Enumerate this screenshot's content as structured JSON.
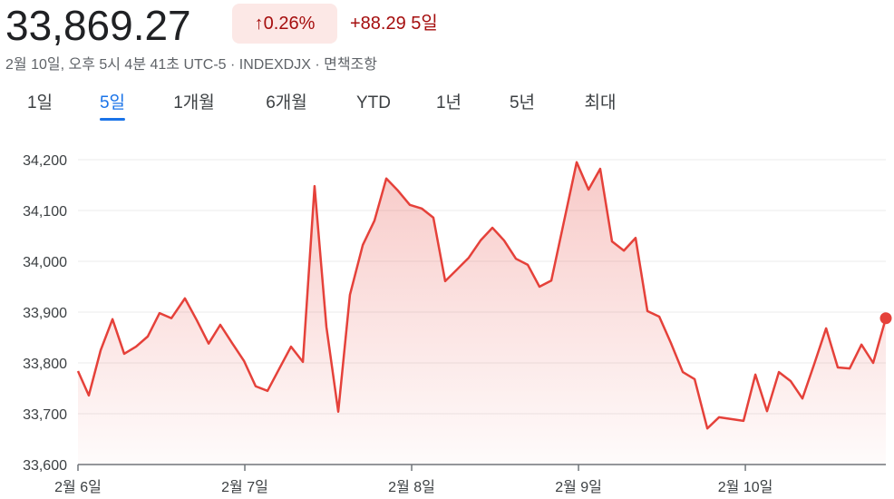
{
  "header": {
    "price": "33,869.27",
    "change_pct": "0.26%",
    "change_abs": "+88.29",
    "change_period": "5일",
    "subtitle": "2월 10일, 오후 5시 4분 41초 UTC-5 · INDEXDJX · 면책조항"
  },
  "tabs": {
    "items": [
      "1일",
      "5일",
      "1개월",
      "6개월",
      "YTD",
      "1년",
      "5년",
      "최대"
    ],
    "selected": 1
  },
  "chart_data": {
    "type": "line",
    "color": "#e5413a",
    "grid": true,
    "x": [
      0,
      0.065,
      0.136,
      0.207,
      0.277,
      0.348,
      0.418,
      0.489,
      0.56,
      0.641,
      0.712,
      0.783,
      0.853,
      0.924,
      0.995,
      1.065,
      1.136,
      1.207,
      1.277,
      1.348,
      1.418,
      1.489,
      1.56,
      1.63,
      1.707,
      1.777,
      1.848,
      1.918,
      1.989,
      2.06,
      2.13,
      2.201,
      2.272,
      2.342,
      2.413,
      2.484,
      2.554,
      2.625,
      2.696,
      2.766,
      2.837,
      2.989,
      3.06,
      3.13,
      3.201,
      3.272,
      3.342,
      3.413,
      3.484,
      3.554,
      3.625,
      3.696,
      3.772,
      3.842,
      3.989,
      4.06,
      4.13,
      4.201,
      4.272,
      4.342,
      4.413,
      4.484,
      4.554,
      4.625,
      4.696,
      4.766,
      4.842
    ],
    "values": [
      33784,
      33736,
      33825,
      33886,
      33818,
      33832,
      33852,
      33898,
      33888,
      33927,
      33884,
      33838,
      33875,
      33839,
      33804,
      33754,
      33745,
      33789,
      33832,
      33802,
      34148,
      33871,
      33704,
      33934,
      34032,
      34080,
      34163,
      34139,
      34111,
      34104,
      34086,
      33961,
      33984,
      34007,
      34041,
      34066,
      34041,
      34005,
      33993,
      33950,
      33962,
      34195,
      34141,
      34182,
      34039,
      34021,
      34046,
      33902,
      33891,
      33839,
      33782,
      33768,
      33671,
      33693,
      33686,
      33777,
      33705,
      33782,
      33764,
      33730,
      33798,
      33868,
      33791,
      33789,
      33836,
      33800,
      33888
    ],
    "xlim": [
      0,
      4.842
    ],
    "xticks": [
      {
        "value": 0,
        "label": "2월 6일"
      },
      {
        "value": 1,
        "label": "2월 7일"
      },
      {
        "value": 2,
        "label": "2월 8일"
      },
      {
        "value": 3,
        "label": "2월 9일"
      },
      {
        "value": 4,
        "label": "2월 10일"
      }
    ],
    "ylim": [
      33600,
      34220
    ],
    "yticks": [
      {
        "value": 33600,
        "label": "33,600"
      },
      {
        "value": 33700,
        "label": "33,700"
      },
      {
        "value": 33800,
        "label": "33,800"
      },
      {
        "value": 33900,
        "label": "33,900"
      },
      {
        "value": 34000,
        "label": "34,000"
      },
      {
        "value": 34100,
        "label": "34,100"
      },
      {
        "value": 34200,
        "label": "34,200"
      }
    ]
  }
}
